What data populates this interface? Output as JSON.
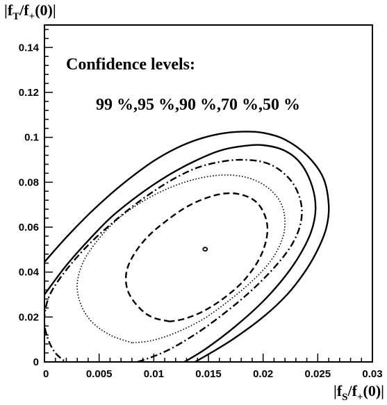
{
  "chart_data": {
    "type": "line",
    "title": "",
    "xlabel": {
      "base": "|f",
      "sub": "S",
      "rest": "/f",
      "sub2": "+",
      "tail": "(0)|"
    },
    "ylabel": {
      "base": "|f",
      "sub": "T",
      "rest": "/f",
      "sub2": "+",
      "tail": "(0)|"
    },
    "xlim": [
      0,
      0.03
    ],
    "ylim": [
      0,
      0.15
    ],
    "xticks": [
      {
        "v": 0,
        "label": "0"
      },
      {
        "v": 0.005,
        "label": "0.005"
      },
      {
        "v": 0.01,
        "label": "0.01"
      },
      {
        "v": 0.015,
        "label": "0.015"
      },
      {
        "v": 0.02,
        "label": "0.02"
      },
      {
        "v": 0.025,
        "label": "0.025"
      },
      {
        "v": 0.03,
        "label": "0.03"
      }
    ],
    "yticks": [
      {
        "v": 0,
        "label": "0"
      },
      {
        "v": 0.02,
        "label": "0.02"
      },
      {
        "v": 0.04,
        "label": "0.04"
      },
      {
        "v": 0.06,
        "label": "0.06"
      },
      {
        "v": 0.08,
        "label": "0.08"
      },
      {
        "v": 0.1,
        "label": "0.1"
      },
      {
        "v": 0.12,
        "label": "0.12"
      },
      {
        "v": 0.14,
        "label": "0.14"
      }
    ],
    "annotations": {
      "heading": "Confidence levels:",
      "levels": "99 %,95 %,90 %,70 %,50 %"
    },
    "best_fit": {
      "x": 0.0147,
      "y": 0.0502
    },
    "series": [
      {
        "level": "99 %",
        "style": "solid",
        "color": "#000000",
        "points": [
          [
            0.0,
            0.0445
          ],
          [
            0.002,
            0.0555
          ],
          [
            0.004,
            0.0655
          ],
          [
            0.006,
            0.0745
          ],
          [
            0.008,
            0.0825
          ],
          [
            0.01,
            0.0895
          ],
          [
            0.012,
            0.095
          ],
          [
            0.014,
            0.099
          ],
          [
            0.016,
            0.1015
          ],
          [
            0.018,
            0.1025
          ],
          [
            0.02,
            0.102
          ],
          [
            0.022,
            0.099
          ],
          [
            0.024,
            0.092
          ],
          [
            0.0255,
            0.082
          ],
          [
            0.026,
            0.07
          ],
          [
            0.0258,
            0.06
          ],
          [
            0.025,
            0.05
          ],
          [
            0.0238,
            0.04
          ],
          [
            0.0222,
            0.03
          ],
          [
            0.02,
            0.02
          ],
          [
            0.0172,
            0.01
          ],
          [
            0.0145,
            0.002
          ],
          [
            0.013,
            -0.002
          ]
        ]
      },
      {
        "level": "95 %",
        "style": "solid",
        "color": "#000000",
        "points": [
          [
            0.0,
            0.03
          ],
          [
            0.002,
            0.043
          ],
          [
            0.004,
            0.054
          ],
          [
            0.006,
            0.064
          ],
          [
            0.008,
            0.072
          ],
          [
            0.01,
            0.079
          ],
          [
            0.012,
            0.085
          ],
          [
            0.014,
            0.09
          ],
          [
            0.016,
            0.094
          ],
          [
            0.018,
            0.096
          ],
          [
            0.02,
            0.0965
          ],
          [
            0.022,
            0.094
          ],
          [
            0.0235,
            0.088
          ],
          [
            0.0245,
            0.078
          ],
          [
            0.0248,
            0.068
          ],
          [
            0.0244,
            0.058
          ],
          [
            0.0234,
            0.048
          ],
          [
            0.022,
            0.038
          ],
          [
            0.02,
            0.027
          ],
          [
            0.0175,
            0.016
          ],
          [
            0.0148,
            0.006
          ],
          [
            0.0128,
            0.0
          ],
          [
            0.012,
            -0.002
          ]
        ]
      },
      {
        "level": "90 %",
        "style": "dashdot",
        "color": "#000000",
        "points": [
          [
            0.0025,
            -0.002
          ],
          [
            0.001,
            0.004
          ],
          [
            0.0002,
            0.012
          ],
          [
            0.0,
            0.02
          ],
          [
            0.0005,
            0.03
          ],
          [
            0.002,
            0.041
          ],
          [
            0.004,
            0.052
          ],
          [
            0.006,
            0.061
          ],
          [
            0.008,
            0.069
          ],
          [
            0.01,
            0.076
          ],
          [
            0.012,
            0.082
          ],
          [
            0.014,
            0.0865
          ],
          [
            0.016,
            0.089
          ],
          [
            0.018,
            0.09
          ],
          [
            0.02,
            0.089
          ],
          [
            0.0215,
            0.0855
          ],
          [
            0.0228,
            0.079
          ],
          [
            0.0235,
            0.07
          ],
          [
            0.0234,
            0.061
          ],
          [
            0.0226,
            0.052
          ],
          [
            0.0212,
            0.043
          ],
          [
            0.0192,
            0.033
          ],
          [
            0.0168,
            0.023
          ],
          [
            0.014,
            0.013
          ],
          [
            0.0112,
            0.005
          ],
          [
            0.0085,
            0.0
          ],
          [
            0.0065,
            -0.002
          ]
        ]
      },
      {
        "level": "70 %",
        "style": "dotted",
        "color": "#000000",
        "points": [
          [
            0.008,
            0.0085
          ],
          [
            0.006,
            0.012
          ],
          [
            0.0043,
            0.018
          ],
          [
            0.0033,
            0.026
          ],
          [
            0.003,
            0.035
          ],
          [
            0.0036,
            0.045
          ],
          [
            0.005,
            0.055
          ],
          [
            0.0068,
            0.064
          ],
          [
            0.009,
            0.0715
          ],
          [
            0.0112,
            0.077
          ],
          [
            0.0135,
            0.081
          ],
          [
            0.0157,
            0.083
          ],
          [
            0.0175,
            0.083
          ],
          [
            0.0192,
            0.081
          ],
          [
            0.0207,
            0.0765
          ],
          [
            0.0217,
            0.07
          ],
          [
            0.022,
            0.062
          ],
          [
            0.0217,
            0.054
          ],
          [
            0.0207,
            0.045
          ],
          [
            0.019,
            0.036
          ],
          [
            0.0168,
            0.027
          ],
          [
            0.0145,
            0.019
          ],
          [
            0.012,
            0.013
          ],
          [
            0.0098,
            0.0095
          ],
          [
            0.008,
            0.0085
          ]
        ]
      },
      {
        "level": "50 %",
        "style": "dashed",
        "color": "#000000",
        "points": [
          [
            0.0115,
            0.018
          ],
          [
            0.0098,
            0.02
          ],
          [
            0.0085,
            0.025
          ],
          [
            0.0076,
            0.032
          ],
          [
            0.0075,
            0.04
          ],
          [
            0.0082,
            0.048
          ],
          [
            0.0095,
            0.056
          ],
          [
            0.0112,
            0.063
          ],
          [
            0.013,
            0.069
          ],
          [
            0.0148,
            0.073
          ],
          [
            0.0165,
            0.075
          ],
          [
            0.018,
            0.0745
          ],
          [
            0.0193,
            0.0715
          ],
          [
            0.0201,
            0.066
          ],
          [
            0.0204,
            0.059
          ],
          [
            0.0201,
            0.051
          ],
          [
            0.0193,
            0.043
          ],
          [
            0.018,
            0.035
          ],
          [
            0.0163,
            0.028
          ],
          [
            0.0145,
            0.0225
          ],
          [
            0.0128,
            0.0192
          ],
          [
            0.0115,
            0.018
          ]
        ]
      }
    ]
  }
}
